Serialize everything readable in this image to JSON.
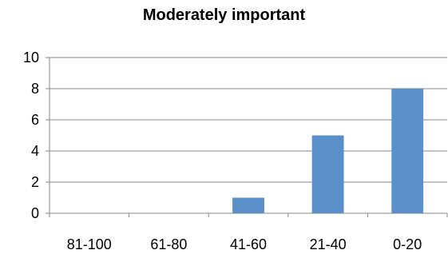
{
  "chart_data": {
    "type": "bar",
    "title": "Moderately important",
    "categories": [
      "81-100",
      "61-80",
      "41-60",
      "21-40",
      "0-20"
    ],
    "values": [
      0,
      0,
      1,
      5,
      8
    ],
    "ylim": [
      0,
      10
    ],
    "yticks": [
      0,
      2,
      4,
      6,
      8,
      10
    ],
    "grid": true,
    "legend": "none",
    "bar_color": "#5b8fc9",
    "grid_color": "#878787"
  }
}
